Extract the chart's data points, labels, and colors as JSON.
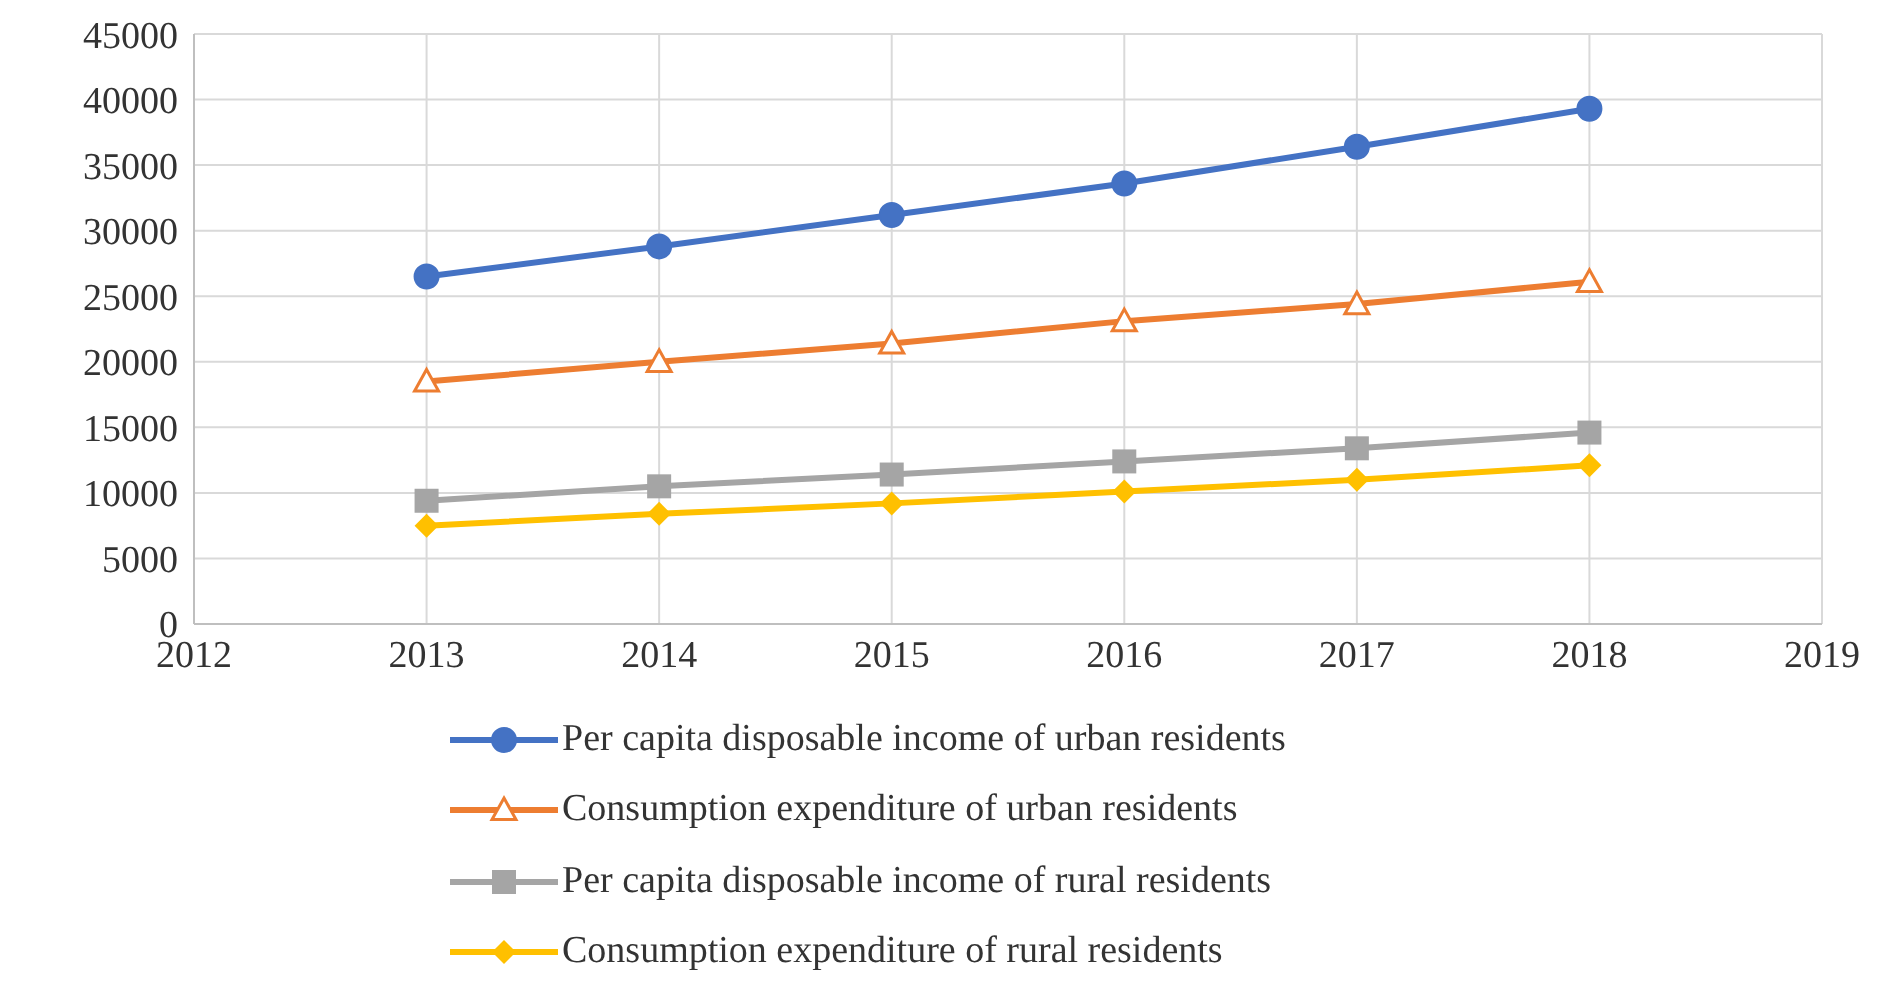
{
  "chart_data": {
    "type": "line",
    "x": [
      2013,
      2014,
      2015,
      2016,
      2017,
      2018
    ],
    "series": [
      {
        "name": "Per capita disposable income of urban residents",
        "color": "#4472c4",
        "marker": "circle",
        "values": [
          26500,
          28800,
          31200,
          33600,
          36400,
          39300
        ]
      },
      {
        "name": "Consumption expenditure of urban residents",
        "color": "#ed7d31",
        "marker": "triangle",
        "values": [
          18500,
          20000,
          21400,
          23100,
          24400,
          26100
        ]
      },
      {
        "name": "Per capita disposable income of rural residents",
        "color": "#a5a5a5",
        "marker": "square",
        "values": [
          9400,
          10500,
          11400,
          12400,
          13400,
          14600
        ]
      },
      {
        "name": "Consumption expenditure of rural residents",
        "color": "#ffc000",
        "marker": "diamond",
        "values": [
          7500,
          8400,
          9200,
          10100,
          11000,
          12100
        ]
      }
    ],
    "xlim": [
      2012,
      2019
    ],
    "xticks": [
      2012,
      2013,
      2014,
      2015,
      2016,
      2017,
      2018,
      2019
    ],
    "ylim": [
      0,
      45000
    ],
    "yticks": [
      0,
      5000,
      10000,
      15000,
      20000,
      25000,
      30000,
      35000,
      40000,
      45000
    ],
    "grid": true,
    "legend": "bottom"
  }
}
